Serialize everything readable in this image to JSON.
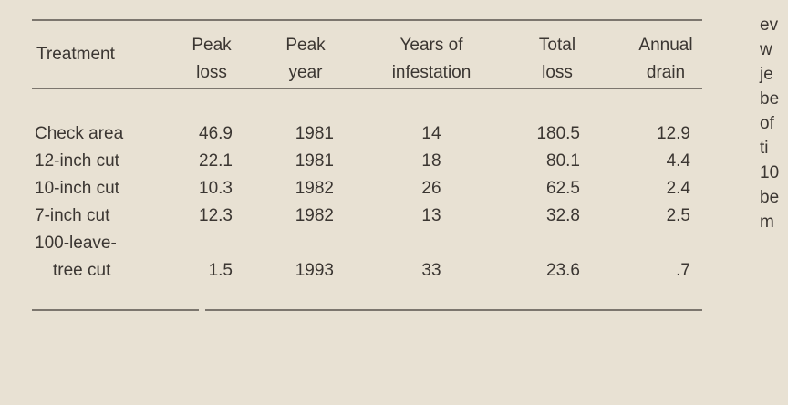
{
  "table": {
    "header": [
      "Treatment",
      "Peak\nloss",
      "Peak\nyear",
      "Years of\ninfestation",
      "Total\nloss",
      "Annual\ndrain"
    ],
    "rows": [
      [
        "Check area",
        "46.9",
        "1981",
        "14",
        "180.5",
        "12.9"
      ],
      [
        "12-inch cut",
        "22.1",
        "1981",
        "18",
        "80.1",
        "4.4"
      ],
      [
        "10-inch cut",
        "10.3",
        "1982",
        "26",
        "62.5",
        "2.4"
      ],
      [
        "7-inch cut",
        "12.3",
        "1982",
        "13",
        "32.8",
        "2.5"
      ],
      [
        "100-leave-\ntree cut",
        "1.5",
        "1993",
        "33",
        "23.6",
        ".7"
      ]
    ]
  },
  "side_text": [
    "ev",
    "w",
    "je",
    "be",
    "of",
    "ti",
    "10",
    "be",
    "m"
  ]
}
